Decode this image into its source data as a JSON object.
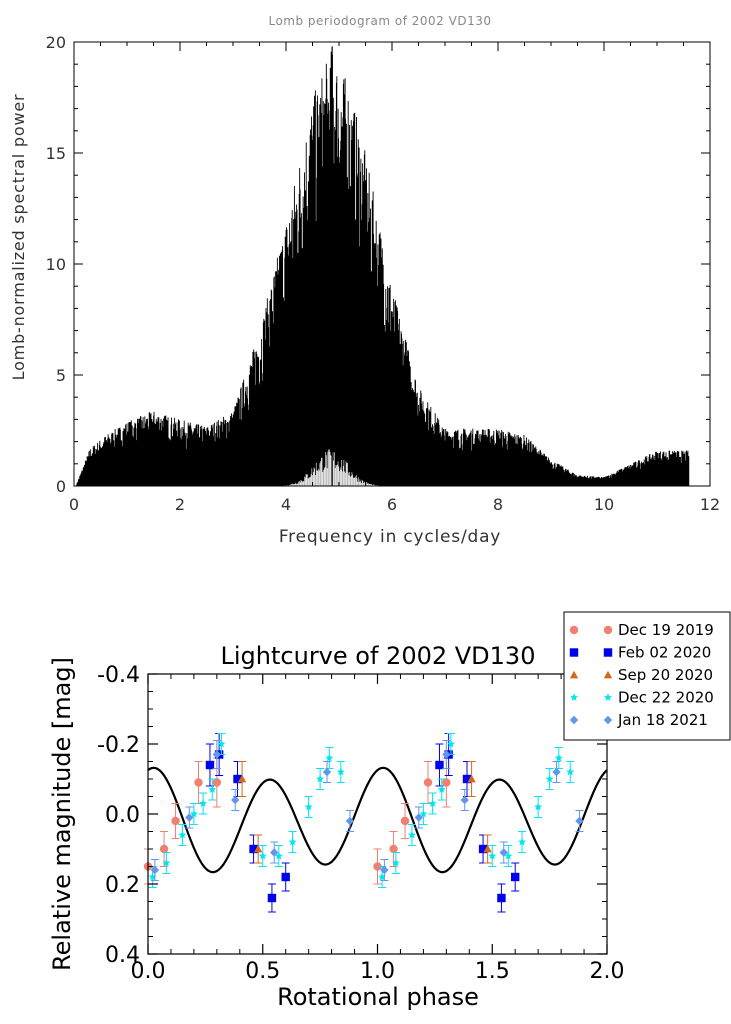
{
  "chart_data": [
    {
      "type": "line",
      "title": "Lomb periodogram of 2002 VD130",
      "xlabel": "Frequency in cycles/day",
      "ylabel": "Lomb-normalized spectral power",
      "xlim": [
        0,
        12
      ],
      "ylim": [
        0,
        20
      ],
      "x_ticks": [
        "0",
        "2",
        "4",
        "6",
        "8",
        "10",
        "12"
      ],
      "y_ticks": [
        "0",
        "5",
        "10",
        "15",
        "20"
      ],
      "grid": false,
      "data_range_x": [
        0.05,
        11.6
      ],
      "peak": {
        "x": 4.87,
        "y": 19.8
      },
      "envelope": {
        "x": [
          0.05,
          0.3,
          0.6,
          1.0,
          1.5,
          2.0,
          2.5,
          3.0,
          3.5,
          4.0,
          4.5,
          4.87,
          5.2,
          5.5,
          6.0,
          6.5,
          7.0,
          7.5,
          8.0,
          8.5,
          9.0,
          9.5,
          10.0,
          10.5,
          11.0,
          11.6
        ],
        "y": [
          0.1,
          1.7,
          2.3,
          2.9,
          3.4,
          3.0,
          2.7,
          3.4,
          7.0,
          12.0,
          17.5,
          19.8,
          18.0,
          15.0,
          9.0,
          4.5,
          2.6,
          2.6,
          2.6,
          2.3,
          1.2,
          0.5,
          0.4,
          1.0,
          1.6,
          1.6
        ]
      },
      "secondary_peak": {
        "x": 4.85,
        "y": 1.7
      }
    },
    {
      "type": "scatter",
      "title": "Lightcurve of 2002 VD130",
      "xlabel": "Rotational phase",
      "ylabel": "Relative magnitude [mag]",
      "xlim": [
        0.0,
        2.0
      ],
      "ylim": [
        -0.4,
        0.4
      ],
      "y_inverted": true,
      "x_ticks": [
        "0.0",
        "0.5",
        "1.0",
        "1.5",
        "2.0"
      ],
      "y_ticks": [
        "-0.4",
        "-0.2",
        "0.0",
        "0.2",
        "0.4"
      ],
      "legend_position": "top-right (outside)",
      "fit": {
        "type": "sine-fourier",
        "amplitude_mag": 0.27
      },
      "series": [
        {
          "name": "Dec 19 2019",
          "color": "#f08070",
          "marker": "circle",
          "x": [
            0.0,
            0.07,
            0.12,
            0.22,
            0.3
          ],
          "y": [
            0.15,
            0.1,
            0.02,
            -0.09,
            -0.09
          ],
          "err": [
            0.05,
            0.05,
            0.05,
            0.06,
            0.07
          ]
        },
        {
          "name": "Feb 02 2020",
          "color": "#0000ee",
          "marker": "square",
          "x": [
            0.27,
            0.31,
            0.39,
            0.46,
            0.54,
            0.6
          ],
          "y": [
            -0.14,
            -0.17,
            -0.1,
            0.1,
            0.24,
            0.18
          ],
          "err": [
            0.06,
            0.06,
            0.05,
            0.04,
            0.04,
            0.04
          ]
        },
        {
          "name": "Sep 20 2020",
          "color": "#d2691e",
          "marker": "triangle",
          "x": [
            0.41,
            0.48
          ],
          "y": [
            -0.1,
            0.1
          ],
          "err": [
            0.05,
            0.04
          ]
        },
        {
          "name": "Dec 22 2020",
          "color": "#00e5ee",
          "marker": "star",
          "x": [
            0.02,
            0.08,
            0.15,
            0.2,
            0.24,
            0.28,
            0.32,
            0.5,
            0.57,
            0.63,
            0.7,
            0.75,
            0.79,
            0.84
          ],
          "y": [
            0.18,
            0.14,
            0.06,
            0.0,
            -0.03,
            -0.07,
            -0.2,
            0.12,
            0.12,
            0.08,
            -0.02,
            -0.1,
            -0.16,
            -0.12
          ],
          "err": [
            0.03,
            0.03,
            0.03,
            0.03,
            0.03,
            0.03,
            0.03,
            0.03,
            0.03,
            0.03,
            0.03,
            0.03,
            0.03,
            0.03
          ]
        },
        {
          "name": "Jan 18 2021",
          "color": "#6495ed",
          "marker": "diamond",
          "x": [
            0.03,
            0.18,
            0.3,
            0.38,
            0.55,
            0.78,
            0.88
          ],
          "y": [
            0.16,
            0.01,
            -0.17,
            -0.04,
            0.11,
            -0.12,
            0.02
          ],
          "err": [
            0.03,
            0.03,
            0.04,
            0.03,
            0.03,
            0.03,
            0.03
          ]
        }
      ]
    }
  ]
}
